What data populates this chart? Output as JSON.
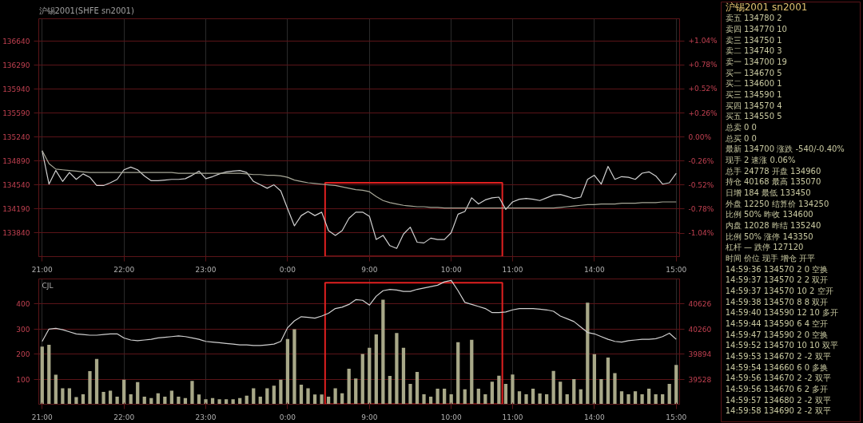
{
  "chart_data": [
    {
      "type": "line",
      "title": "沪锡2001(SHFE sn2001)",
      "categories": [
        "21:00",
        null,
        null,
        null,
        null,
        null,
        null,
        null,
        null,
        null,
        null,
        null,
        "22:00",
        null,
        null,
        null,
        null,
        null,
        null,
        null,
        null,
        null,
        null,
        null,
        "23:00",
        null,
        null,
        null,
        null,
        null,
        null,
        null,
        null,
        null,
        null,
        null,
        "0:00",
        null,
        null,
        null,
        null,
        null,
        null,
        null,
        null,
        null,
        null,
        null,
        "9:00",
        null,
        null,
        null,
        null,
        null,
        null,
        null,
        null,
        null,
        null,
        null,
        "10:00",
        null,
        null,
        null,
        null,
        null,
        null,
        null,
        null,
        "11:00",
        null,
        null,
        null,
        null,
        null,
        null,
        null,
        null,
        null,
        null,
        null,
        "14:00",
        null,
        null,
        null,
        null,
        null,
        null,
        null,
        null,
        null,
        null,
        null,
        "15:00"
      ],
      "ylim": [
        133490,
        136970
      ],
      "yticks": [
        133840,
        134190,
        134540,
        134890,
        135240,
        135590,
        135940,
        136290,
        136640
      ],
      "y2lim": [
        -1.294,
        1.279
      ],
      "y2ticks": [
        {
          "value": -1.04,
          "label": "-1.04%"
        },
        {
          "value": -0.78,
          "label": "-0.78%"
        },
        {
          "value": -0.52,
          "label": "-0.52%"
        },
        {
          "value": -0.26,
          "label": "-0.26%"
        },
        {
          "value": 0,
          "label": "0.00%"
        },
        {
          "value": 0.26,
          "label": "+0.26%"
        },
        {
          "value": 0.52,
          "label": "+0.52%"
        },
        {
          "value": 0.78,
          "label": "+0.78%"
        },
        {
          "value": 1.04,
          "label": "+1.04%"
        }
      ],
      "grid": true,
      "series": [
        {
          "color": "#d0d0d0",
          "values": [
            135040,
            134550,
            134750,
            134590,
            134720,
            134620,
            134700,
            134650,
            134530,
            134530,
            134570,
            134620,
            134760,
            134800,
            134760,
            134670,
            134600,
            134600,
            134610,
            134620,
            134620,
            134630,
            134680,
            134740,
            134630,
            134660,
            134700,
            134730,
            134740,
            134750,
            134720,
            134590,
            134540,
            134490,
            134540,
            134450,
            134190,
            133940,
            134090,
            134150,
            134090,
            134140,
            133870,
            133800,
            133870,
            134050,
            134140,
            134140,
            134080,
            133740,
            133800,
            133650,
            133610,
            133820,
            133920,
            133700,
            133690,
            133760,
            133740,
            133740,
            133840,
            134110,
            134150,
            134350,
            134260,
            134320,
            134350,
            134360,
            134180,
            134290,
            134330,
            134340,
            134330,
            134310,
            134350,
            134390,
            134400,
            134370,
            134340,
            134360,
            134620,
            134680,
            134550,
            134810,
            134620,
            134660,
            134650,
            134620,
            134710,
            134730,
            134670,
            134550,
            134570,
            134710
          ]
        },
        {
          "color": "#a8a898",
          "values": [
            135040,
            134850,
            134770,
            134760,
            134750,
            134740,
            134730,
            134720,
            134720,
            134720,
            134720,
            134720,
            134720,
            134720,
            134720,
            134720,
            134720,
            134720,
            134720,
            134720,
            134710,
            134710,
            134710,
            134710,
            134710,
            134710,
            134710,
            134710,
            134710,
            134710,
            134700,
            134690,
            134690,
            134680,
            134680,
            134670,
            134650,
            134610,
            134590,
            134570,
            134560,
            134550,
            134540,
            134530,
            134510,
            134490,
            134470,
            134460,
            134440,
            134370,
            134310,
            134280,
            134260,
            134240,
            134230,
            134220,
            134220,
            134210,
            134210,
            134200,
            134200,
            134200,
            134200,
            134200,
            134200,
            134200,
            134200,
            134200,
            134200,
            134200,
            134200,
            134200,
            134200,
            134200,
            134200,
            134200,
            134210,
            134220,
            134230,
            134240,
            134250,
            134250,
            134260,
            134260,
            134260,
            134270,
            134270,
            134270,
            134280,
            134280,
            134280,
            134290,
            134290,
            134290
          ]
        }
      ]
    },
    {
      "type": "bar",
      "ylabel": "CJL",
      "categories": [
        "21:00",
        null,
        null,
        null,
        null,
        null,
        null,
        null,
        null,
        null,
        null,
        null,
        "22:00",
        null,
        null,
        null,
        null,
        null,
        null,
        null,
        null,
        null,
        null,
        null,
        "23:00",
        null,
        null,
        null,
        null,
        null,
        null,
        null,
        null,
        null,
        null,
        null,
        "0:00",
        null,
        null,
        null,
        null,
        null,
        null,
        null,
        null,
        null,
        null,
        null,
        "9:00",
        null,
        null,
        null,
        null,
        null,
        null,
        null,
        null,
        null,
        null,
        null,
        "10:00",
        null,
        null,
        null,
        null,
        null,
        null,
        null,
        null,
        "11:00",
        null,
        null,
        null,
        null,
        null,
        null,
        null,
        null,
        null,
        null,
        null,
        "14:00",
        null,
        null,
        null,
        null,
        null,
        null,
        null,
        null,
        null,
        null,
        null,
        "15:00"
      ],
      "ylim": [
        0,
        500
      ],
      "yticks": [
        100,
        200,
        300,
        400
      ],
      "y2lim": [
        39162,
        40992
      ],
      "y2ticks": [
        39528,
        39894,
        40260,
        40626
      ],
      "grid": true,
      "series": [
        {
          "color": "#a8a888",
          "values": [
            230,
            237,
            118,
            64,
            64,
            29,
            40,
            132,
            181,
            49,
            54,
            30,
            98,
            40,
            88,
            30,
            25,
            44,
            30,
            54,
            30,
            25,
            93,
            39,
            20,
            25,
            20,
            20,
            20,
            25,
            34,
            64,
            30,
            64,
            74,
            98,
            260,
            299,
            78,
            64,
            39,
            39,
            30,
            64,
            44,
            142,
            103,
            201,
            225,
            279,
            417,
            113,
            284,
            225,
            81,
            129,
            40,
            30,
            62,
            62,
            40,
            248,
            60,
            257,
            62,
            40,
            90,
            114,
            81,
            119,
            52,
            40,
            62,
            43,
            40,
            133,
            90,
            40,
            100,
            60,
            405,
            200,
            100,
            186,
            124,
            52,
            40,
            52,
            40,
            62,
            40,
            40,
            81,
            157
          ]
        },
        {
          "type": "line",
          "axis": "y2",
          "color": "#d0d0d0",
          "values": [
            40080,
            40260,
            40270,
            40250,
            40220,
            40190,
            40180,
            40170,
            40170,
            40180,
            40190,
            40190,
            40130,
            40100,
            40090,
            40100,
            40110,
            40130,
            40140,
            40150,
            40160,
            40150,
            40130,
            40110,
            40080,
            40070,
            40060,
            40050,
            40040,
            40030,
            40030,
            40020,
            40020,
            40030,
            40040,
            40080,
            40280,
            40380,
            40440,
            40430,
            40420,
            40450,
            40490,
            40560,
            40580,
            40620,
            40690,
            40680,
            40610,
            40740,
            40820,
            40840,
            40830,
            40810,
            40810,
            40840,
            40860,
            40880,
            40900,
            40950,
            40970,
            40820,
            40650,
            40620,
            40590,
            40560,
            40500,
            40500,
            40510,
            40540,
            40560,
            40560,
            40560,
            40550,
            40540,
            40520,
            40450,
            40410,
            40370,
            40290,
            40210,
            40190,
            40150,
            40110,
            40080,
            40070,
            40090,
            40100,
            40110,
            40110,
            40120,
            40150,
            40200,
            40110
          ]
        }
      ]
    },
    {
      "type": "other",
      "title": "沪锡2001  sn2001",
      "annotations": [
        "卖五 134780 2",
        "卖四 134770 10",
        "卖三 134750 1",
        "卖二 134740 3",
        "卖一 134700 19",
        "买一 134670 5",
        "买二 134600 1",
        "买三 134590 1",
        "买四 134570 4",
        "买五 134550 5",
        "总卖 0 0",
        "总买 0 0",
        "最新 134700 涨跌 -540/-0.40%",
        "现手 2 速涨 0.06%",
        "总手 24778 开盘 134960",
        "持仓 40168 最高 135070",
        "日增 184 最低 133450",
        "外盘 12250 结算价 134250",
        "比例 50% 昨收 134600",
        "内盘 12028 昨结 135240",
        "比例 50% 涨停 143350",
        "杠杆 — 跌停 127120",
        "时间 价位 现手 增仓 开平",
        "14:59:36 134570 2 0 空换",
        "14:59:37 134570 2 2 双开",
        "14:59:37 134570 10 2 空开",
        "14:59:38 134570 8 8 双开",
        "14:59:40 134590 12 10 多开",
        "14:59:44 134590 6 4 空开",
        "14:59:47 134590 2 0 空换",
        "14:59:52 134570 10 10 双平",
        "14:59:53 134670 2 -2 双平",
        "14:59:54 134660 6 0 多换",
        "14:59:56 134670 2 -2 双平",
        "14:59:56 134670 6 2 多开",
        "14:59:57 134680 2 -2 双平",
        "14:59:58 134690 2 -2 双平"
      ]
    }
  ]
}
